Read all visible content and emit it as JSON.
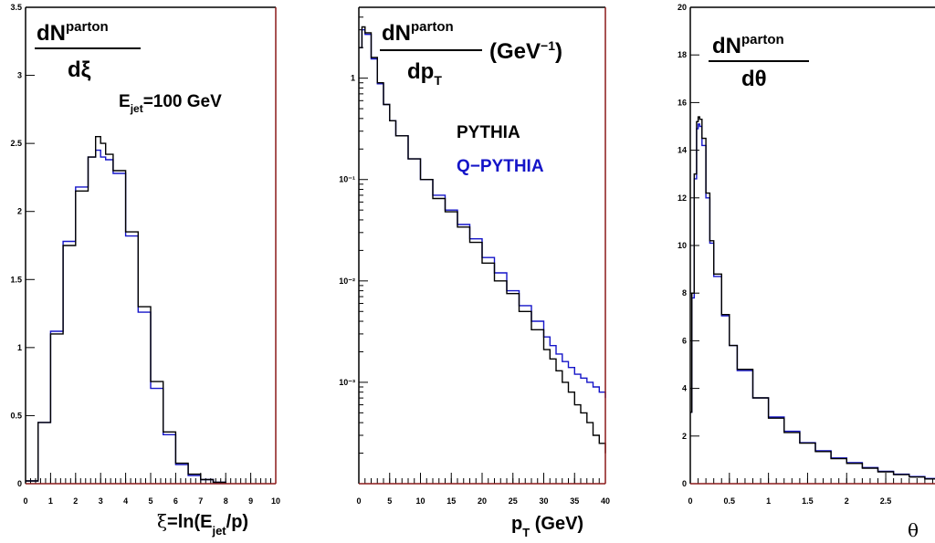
{
  "colors": {
    "pythia": "#000000",
    "qpythia": "#1414c8",
    "frame": "#000000",
    "frame_right": "#8b1a1a"
  },
  "chart_data": [
    {
      "type": "line",
      "step": true,
      "xlim": [
        0,
        10
      ],
      "ylim": [
        0,
        3.5
      ],
      "xticks": [
        "0",
        "1",
        "2",
        "3",
        "4",
        "5",
        "6",
        "7",
        "8",
        "9",
        "10"
      ],
      "yticks": [
        "0",
        "0.5",
        "1",
        "1.5",
        "2",
        "2.5",
        "3",
        "3.5"
      ],
      "xlabel_pre": "ξ",
      "xlabel_main": "=ln(E",
      "xlabel_sub": "jet",
      "xlabel_post": "/p)",
      "ylabel_num": "dN",
      "ylabel_sup": "parton",
      "ylabel_den": "dξ",
      "annotation_main": "E",
      "annotation_sub": "jet",
      "annotation_post": "=100 GeV",
      "x": [
        0,
        0.5,
        1,
        1.5,
        2,
        2.5,
        2.8,
        3,
        3.2,
        3.5,
        4,
        4.5,
        5,
        5.5,
        6,
        6.5,
        7,
        7.5,
        8
      ],
      "series": [
        {
          "name": "PYTHIA",
          "values": [
            0.02,
            0.45,
            1.1,
            1.75,
            2.15,
            2.4,
            2.55,
            2.5,
            2.42,
            2.3,
            1.85,
            1.3,
            0.75,
            0.38,
            0.15,
            0.07,
            0.03,
            0.01,
            0.0
          ]
        },
        {
          "name": "Q-PYTHIA",
          "values": [
            0.02,
            0.45,
            1.12,
            1.78,
            2.18,
            2.4,
            2.45,
            2.4,
            2.38,
            2.28,
            1.82,
            1.26,
            0.7,
            0.36,
            0.14,
            0.06,
            0.03,
            0.01,
            0.0
          ]
        }
      ]
    },
    {
      "type": "line",
      "step": true,
      "ylog": true,
      "xlim": [
        0,
        40
      ],
      "ylim": [
        0.0001,
        5
      ],
      "xticks": [
        "0",
        "5",
        "10",
        "15",
        "20",
        "25",
        "30",
        "35",
        "40"
      ],
      "ytick_values": [
        0.001,
        0.01,
        0.1,
        1
      ],
      "yticks": [
        "10⁻³",
        "10⁻²",
        "10⁻¹",
        "1"
      ],
      "xlabel_main": "p",
      "xlabel_sub": "T",
      "xlabel_post": " (GeV)",
      "ylabel_num": "dN",
      "ylabel_sup": "parton",
      "ylabel_den": "dp",
      "ylabel_den_sub": "T",
      "ylabel_units": "(GeV",
      "ylabel_units_sup": "−1",
      "ylabel_units_post": ")",
      "legend_pythia": "PYTHIA",
      "legend_qpythia": "Q−PYTHIA",
      "x": [
        0,
        0.5,
        1,
        2,
        3,
        4,
        5,
        6,
        8,
        10,
        12,
        14,
        16,
        18,
        20,
        22,
        24,
        26,
        28,
        30,
        31,
        32,
        33,
        34,
        35,
        36,
        37,
        38,
        39,
        40
      ],
      "series": [
        {
          "name": "PYTHIA",
          "values": [
            2.0,
            3.2,
            2.8,
            1.6,
            0.9,
            0.55,
            0.38,
            0.27,
            0.16,
            0.1,
            0.065,
            0.048,
            0.034,
            0.024,
            0.015,
            0.01,
            0.0075,
            0.005,
            0.0033,
            0.0021,
            0.0017,
            0.0013,
            0.001,
            0.0008,
            0.0006,
            0.0005,
            0.0004,
            0.0003,
            0.00025,
            0.0002
          ]
        },
        {
          "name": "Q-PYTHIA",
          "values": [
            2.0,
            3.0,
            2.7,
            1.55,
            0.88,
            0.55,
            0.38,
            0.27,
            0.16,
            0.1,
            0.07,
            0.05,
            0.036,
            0.026,
            0.017,
            0.012,
            0.008,
            0.0057,
            0.004,
            0.0028,
            0.0023,
            0.0019,
            0.0016,
            0.0014,
            0.0012,
            0.0011,
            0.001,
            0.0009,
            0.0008,
            0.0007
          ]
        }
      ]
    },
    {
      "type": "line",
      "step": true,
      "xlim": [
        0,
        3.2
      ],
      "ylim": [
        0,
        20
      ],
      "xticks": [
        "0",
        "0.5",
        "1",
        "1.5",
        "2",
        "2.5"
      ],
      "xtick_values": [
        0,
        0.5,
        1,
        1.5,
        2,
        2.5
      ],
      "yticks": [
        "0",
        "2",
        "4",
        "6",
        "8",
        "10",
        "12",
        "14",
        "16",
        "18",
        "20"
      ],
      "xlabel_main": "θ",
      "ylabel_num": "dN",
      "ylabel_sup": "parton",
      "ylabel_den": "dθ",
      "x": [
        0,
        0.02,
        0.05,
        0.08,
        0.1,
        0.12,
        0.15,
        0.2,
        0.25,
        0.3,
        0.4,
        0.5,
        0.6,
        0.8,
        1,
        1.2,
        1.4,
        1.6,
        1.8,
        2,
        2.2,
        2.4,
        2.6,
        2.8,
        3,
        3.14
      ],
      "series": [
        {
          "name": "PYTHIA",
          "values": [
            3,
            8,
            13,
            15.2,
            15.4,
            15.3,
            14.5,
            12.2,
            10.2,
            8.8,
            7.1,
            5.8,
            4.8,
            3.6,
            2.75,
            2.15,
            1.7,
            1.35,
            1.05,
            0.85,
            0.65,
            0.5,
            0.38,
            0.28,
            0.2,
            0.15
          ]
        },
        {
          "name": "Q-PYTHIA",
          "values": [
            3,
            7.8,
            12.8,
            14.9,
            15.1,
            15.0,
            14.2,
            12.0,
            10.1,
            8.7,
            7.05,
            5.8,
            4.75,
            3.6,
            2.8,
            2.2,
            1.72,
            1.38,
            1.08,
            0.88,
            0.68,
            0.52,
            0.4,
            0.3,
            0.22,
            0.16
          ]
        }
      ]
    }
  ]
}
